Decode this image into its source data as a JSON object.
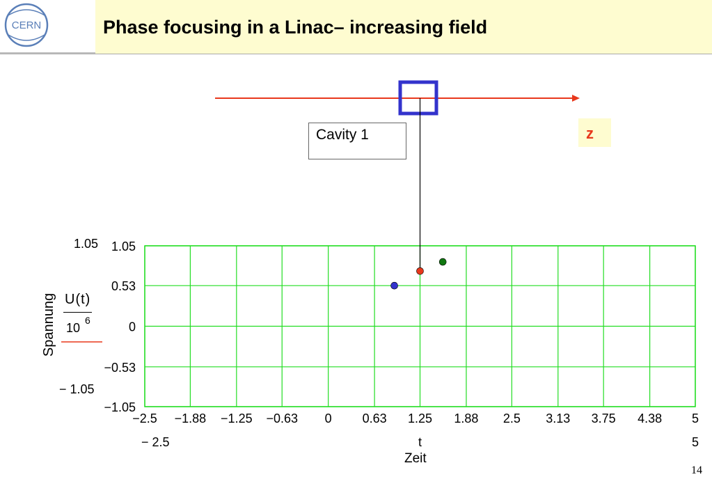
{
  "header": {
    "title": "Phase focusing in a Linac– increasing field"
  },
  "logo": {
    "text": "CERN"
  },
  "cavity": {
    "label": "Cavity 1"
  },
  "axis_marker": {
    "label": "z",
    "color": "#e8381c"
  },
  "slide": {
    "number": "14"
  },
  "chart_data": {
    "type": "scatter",
    "xlabel_var": "t",
    "xlabel": "Zeit",
    "ylabel": "Spannung",
    "ylabel_expr": {
      "numerator": "U(t)",
      "base": "10",
      "exponent": "6"
    },
    "xlim": [
      -2.5,
      5
    ],
    "ylim": [
      -1.05,
      1.05
    ],
    "x_range_labels": [
      "− 2.5",
      "5"
    ],
    "y_range_labels": [
      "1.05",
      "− 1.05"
    ],
    "x_ticks": [
      "−2.5",
      "−1.88",
      "−1.25",
      "−0.63",
      "0",
      "0.63",
      "1.25",
      "1.88",
      "2.5",
      "3.13",
      "3.75",
      "4.38",
      "5"
    ],
    "x_tick_values": [
      -2.5,
      -1.88,
      -1.25,
      -0.63,
      0,
      0.63,
      1.25,
      1.88,
      2.5,
      3.13,
      3.75,
      4.38,
      5
    ],
    "y_ticks": [
      "1.05",
      "0.53",
      "0",
      "−0.53",
      "−1.05"
    ],
    "y_tick_values": [
      1.05,
      0.53,
      0,
      -0.53,
      -1.05
    ],
    "grid": true,
    "grid_color": "#22dd22",
    "points": [
      {
        "x": 0.9,
        "y": 0.53,
        "color": "#3333cc"
      },
      {
        "x": 1.25,
        "y": 0.72,
        "color": "#e8381c"
      },
      {
        "x": 1.56,
        "y": 0.84,
        "color": "#117711"
      }
    ],
    "cavity_position": 1.25
  }
}
